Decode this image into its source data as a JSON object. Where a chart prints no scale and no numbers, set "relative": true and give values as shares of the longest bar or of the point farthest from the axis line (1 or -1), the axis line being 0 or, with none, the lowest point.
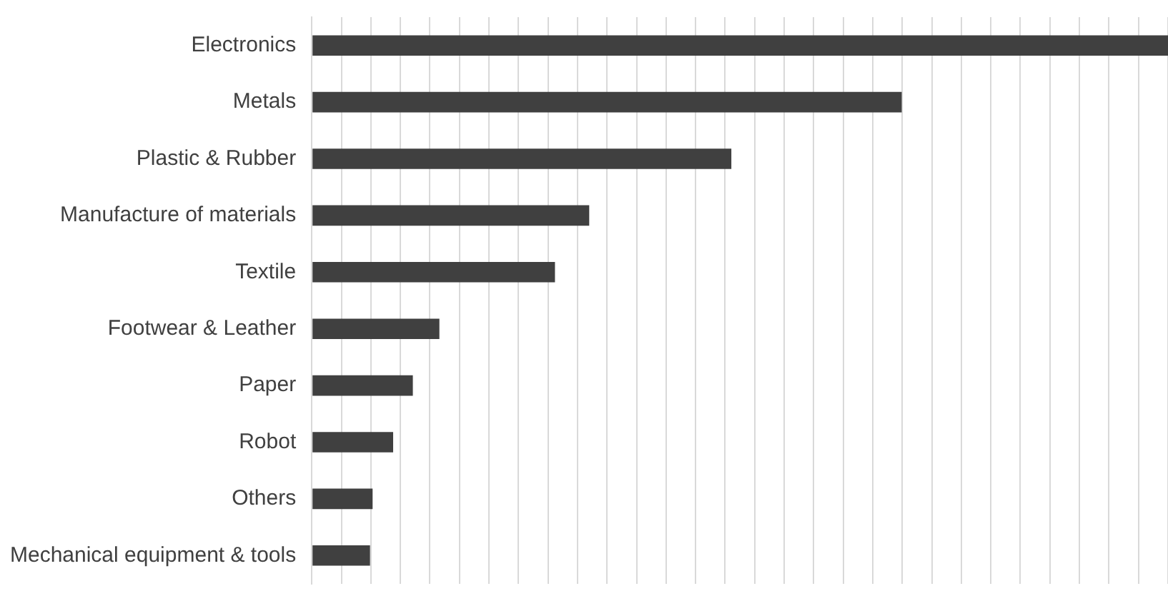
{
  "chart_data": {
    "type": "bar",
    "orientation": "horizontal",
    "relative": true,
    "grid": "x",
    "color": "#404040",
    "categories": [
      "Electronics",
      "Metals",
      "Plastic & Rubber",
      "Manufacture of materials",
      "Textile",
      "Footwear & Leather",
      "Paper",
      "Robot",
      "Others",
      "Mechanical equipment & tools"
    ],
    "values": [
      1,
      0.689,
      0.49,
      0.324,
      0.284,
      0.149,
      0.118,
      0.095,
      0.071,
      0.068
    ]
  }
}
